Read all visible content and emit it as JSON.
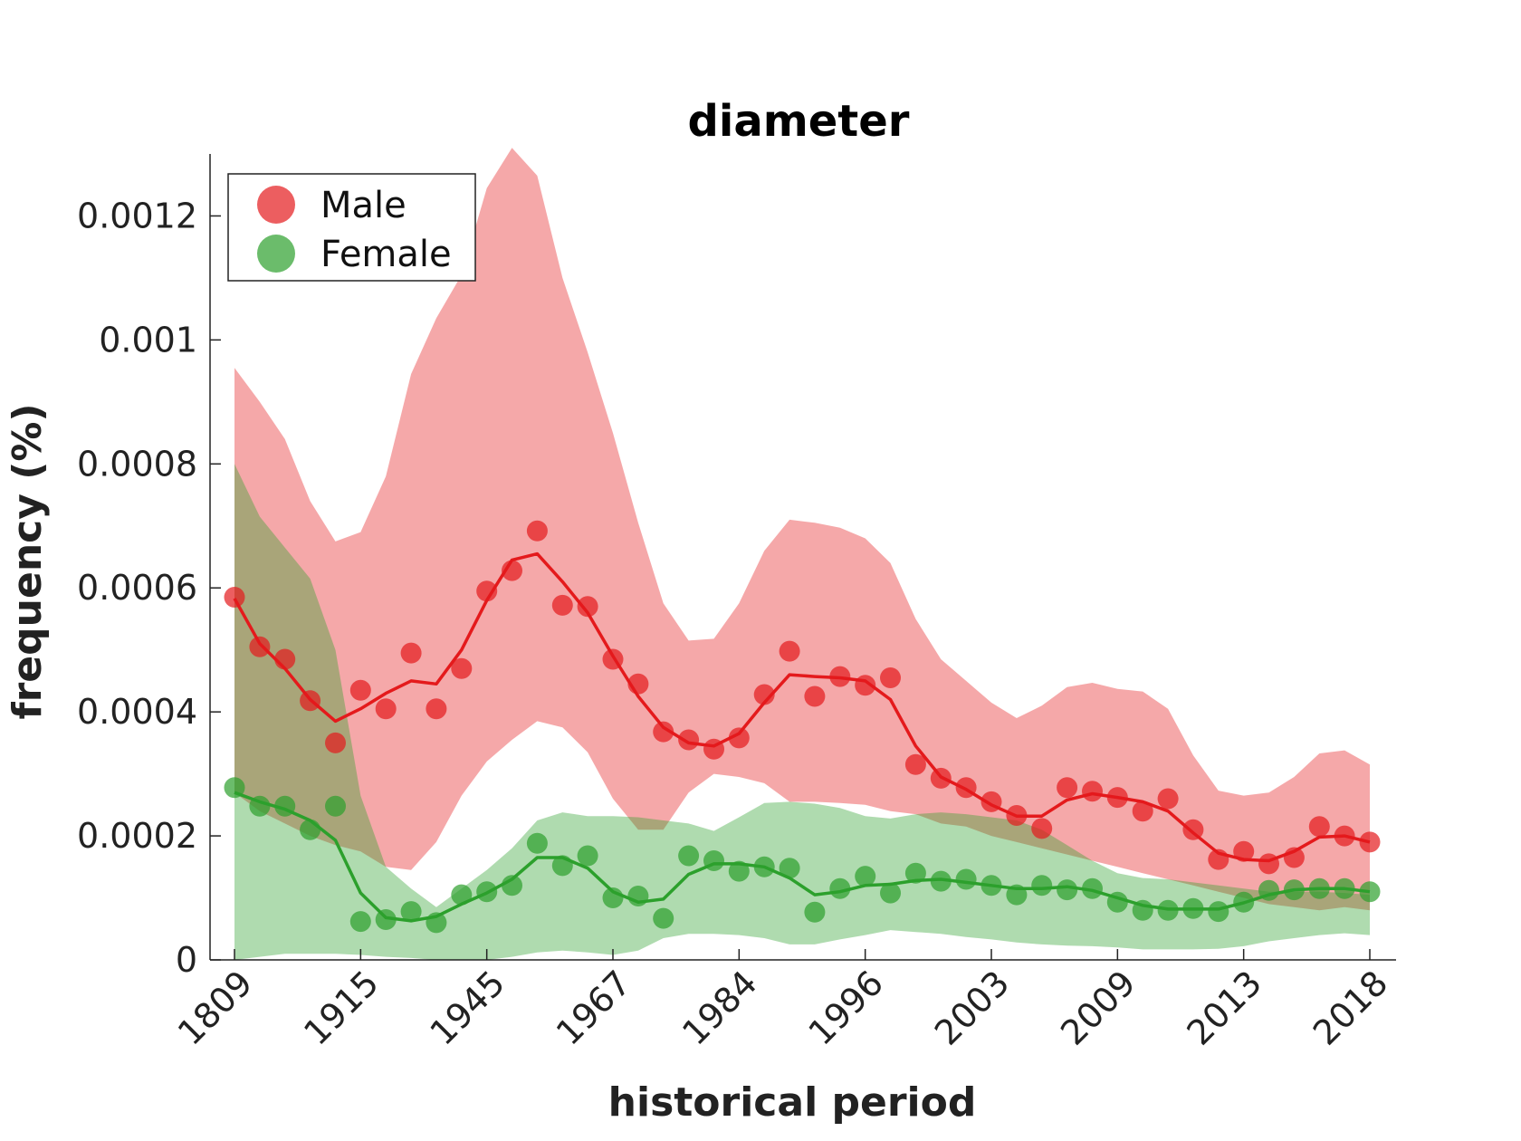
{
  "chart_data": {
    "type": "line",
    "title": "diameter",
    "xlabel": "historical period",
    "ylabel": "frequency (%)",
    "x_tick_labels": [
      "1809",
      "1915",
      "1945",
      "1967",
      "1984",
      "1996",
      "2003",
      "2009",
      "2013",
      "2018"
    ],
    "y_tick_labels": [
      "0",
      "0.0002",
      "0.0004",
      "0.0006",
      "0.0008",
      "0.001",
      "0.0012"
    ],
    "ylim": [
      0,
      0.0013
    ],
    "legend": {
      "position": "top-left",
      "entries": [
        "Male",
        "Female"
      ]
    },
    "series": [
      {
        "name": "Male",
        "color": "#e41a1c",
        "band_color": "#f4a2a3",
        "points": [
          0.000585,
          0.000505,
          0.000485,
          0.000418,
          0.00035,
          0.000435,
          0.000405,
          0.000495,
          0.000405,
          0.00047,
          0.000595,
          0.000628,
          0.000692,
          0.000572,
          0.00057,
          0.000485,
          0.000445,
          0.000368,
          0.000355,
          0.00034,
          0.000358,
          0.000428,
          0.000498,
          0.000425,
          0.000457,
          0.000443,
          0.000455,
          0.000315,
          0.000293,
          0.000278,
          0.000255,
          0.000233,
          0.000212,
          0.000278,
          0.000272,
          0.000262,
          0.00024,
          0.00026,
          0.00021,
          0.000162,
          0.000175,
          0.000155,
          0.000165,
          0.000215,
          0.0002,
          0.00019
        ],
        "smooth": [
          0.000583,
          0.00051,
          0.00047,
          0.00042,
          0.000385,
          0.000405,
          0.00043,
          0.00045,
          0.000445,
          0.0005,
          0.00058,
          0.000645,
          0.000655,
          0.00061,
          0.00056,
          0.00049,
          0.000425,
          0.000375,
          0.00035,
          0.000345,
          0.000365,
          0.000415,
          0.00046,
          0.000457,
          0.000455,
          0.00045,
          0.00042,
          0.000345,
          0.000295,
          0.000275,
          0.00025,
          0.000232,
          0.000232,
          0.000258,
          0.000268,
          0.000262,
          0.000255,
          0.00024,
          0.000205,
          0.000172,
          0.000162,
          0.00016,
          0.000175,
          0.000198,
          0.0002,
          0.00019
        ],
        "band_upper": [
          0.000955,
          0.0009,
          0.00084,
          0.00074,
          0.000675,
          0.00069,
          0.00078,
          0.000945,
          0.001035,
          0.001105,
          0.001245,
          0.00131,
          0.001265,
          0.0011,
          0.00098,
          0.00085,
          0.000705,
          0.000575,
          0.000515,
          0.000518,
          0.000575,
          0.00066,
          0.00071,
          0.000705,
          0.000697,
          0.00068,
          0.00064,
          0.00055,
          0.000485,
          0.00045,
          0.000415,
          0.00039,
          0.00041,
          0.00044,
          0.000447,
          0.000437,
          0.000433,
          0.000405,
          0.00033,
          0.000273,
          0.000265,
          0.00027,
          0.000295,
          0.000333,
          0.000338,
          0.000315
        ],
        "band_lower": [
          0.00027,
          0.00024,
          0.00022,
          0.0002,
          0.000185,
          0.000175,
          0.00015,
          0.000145,
          0.00019,
          0.000265,
          0.00032,
          0.000355,
          0.000385,
          0.000375,
          0.000335,
          0.00026,
          0.00021,
          0.00021,
          0.00027,
          0.0003,
          0.000295,
          0.000285,
          0.000255,
          0.000255,
          0.000253,
          0.00025,
          0.00024,
          0.000235,
          0.00022,
          0.000215,
          0.0002,
          0.00019,
          0.00018,
          0.00017,
          0.00016,
          0.00015,
          0.00014,
          0.00013,
          0.00012,
          0.00011,
          0.0001,
          9e-05,
          8.5e-05,
          8e-05,
          8.5e-05,
          8e-05
        ]
      },
      {
        "name": "Female",
        "color": "#2ca02c",
        "band_color": "#a9dba2",
        "points": [
          0.000278,
          0.000248,
          0.000248,
          0.00021,
          0.000248,
          6.2e-05,
          6.5e-05,
          7.8e-05,
          6e-05,
          0.000105,
          0.00011,
          0.00012,
          0.000188,
          0.000152,
          0.000168,
          0.0001,
          0.000103,
          6.7e-05,
          0.000168,
          0.00016,
          0.000143,
          0.00015,
          0.000148,
          7.7e-05,
          0.000115,
          0.000135,
          0.000108,
          0.00014,
          0.000127,
          0.00013,
          0.00012,
          0.000105,
          0.00012,
          0.000113,
          0.000115,
          9.3e-05,
          8e-05,
          8e-05,
          8.3e-05,
          7.8e-05,
          9.3e-05,
          0.000112,
          0.000113,
          0.000115,
          0.000115,
          0.00011
        ],
        "smooth": [
          0.00027,
          0.000255,
          0.000243,
          0.000225,
          0.000193,
          0.000108,
          6.8e-05,
          6.3e-05,
          7e-05,
          9e-05,
          0.000108,
          0.00013,
          0.000165,
          0.000165,
          0.000148,
          0.00011,
          9.3e-05,
          9.8e-05,
          0.000138,
          0.000155,
          0.000155,
          0.00015,
          0.000132,
          0.000105,
          0.00011,
          0.00012,
          0.000122,
          0.000128,
          0.00013,
          0.000125,
          0.00012,
          0.000115,
          0.000115,
          0.000118,
          0.000112,
          0.0001,
          8.8e-05,
          8.2e-05,
          8.2e-05,
          8.2e-05,
          9.2e-05,
          0.000105,
          0.000113,
          0.000115,
          0.000115,
          0.00011
        ],
        "band_upper": [
          0.0008,
          0.000715,
          0.000665,
          0.000615,
          0.0005,
          0.000265,
          0.00015,
          0.000115,
          8.5e-05,
          0.000115,
          0.000145,
          0.00018,
          0.000225,
          0.000238,
          0.000232,
          0.000232,
          0.00023,
          0.000225,
          0.00022,
          0.000208,
          0.00023,
          0.000253,
          0.000255,
          0.000252,
          0.000245,
          0.000232,
          0.000228,
          0.000235,
          0.000238,
          0.000235,
          0.00023,
          0.000225,
          0.00021,
          0.000185,
          0.00016,
          0.00014,
          0.000132,
          0.00013,
          0.000125,
          0.00012,
          0.000115,
          0.00011,
          0.00011,
          0.00011,
          0.000108,
          0.000105
        ],
        "band_lower": [
          0.0,
          5e-06,
          1e-05,
          1e-05,
          1e-05,
          8e-06,
          5e-06,
          3e-06,
          0.0,
          0.0,
          0.0,
          5e-06,
          1.2e-05,
          1.5e-05,
          1.2e-05,
          8e-06,
          1.5e-05,
          3.5e-05,
          4.2e-05,
          4.2e-05,
          4e-05,
          3.5e-05,
          2.5e-05,
          2.5e-05,
          3.3e-05,
          4e-05,
          4.8e-05,
          4.5e-05,
          4.2e-05,
          3.7e-05,
          3.3e-05,
          2.8e-05,
          2.5e-05,
          2.3e-05,
          2.2e-05,
          2e-05,
          1.7e-05,
          1.7e-05,
          1.7e-05,
          1.8e-05,
          2.2e-05,
          3e-05,
          3.5e-05,
          4e-05,
          4.3e-05,
          4e-05
        ]
      }
    ]
  }
}
